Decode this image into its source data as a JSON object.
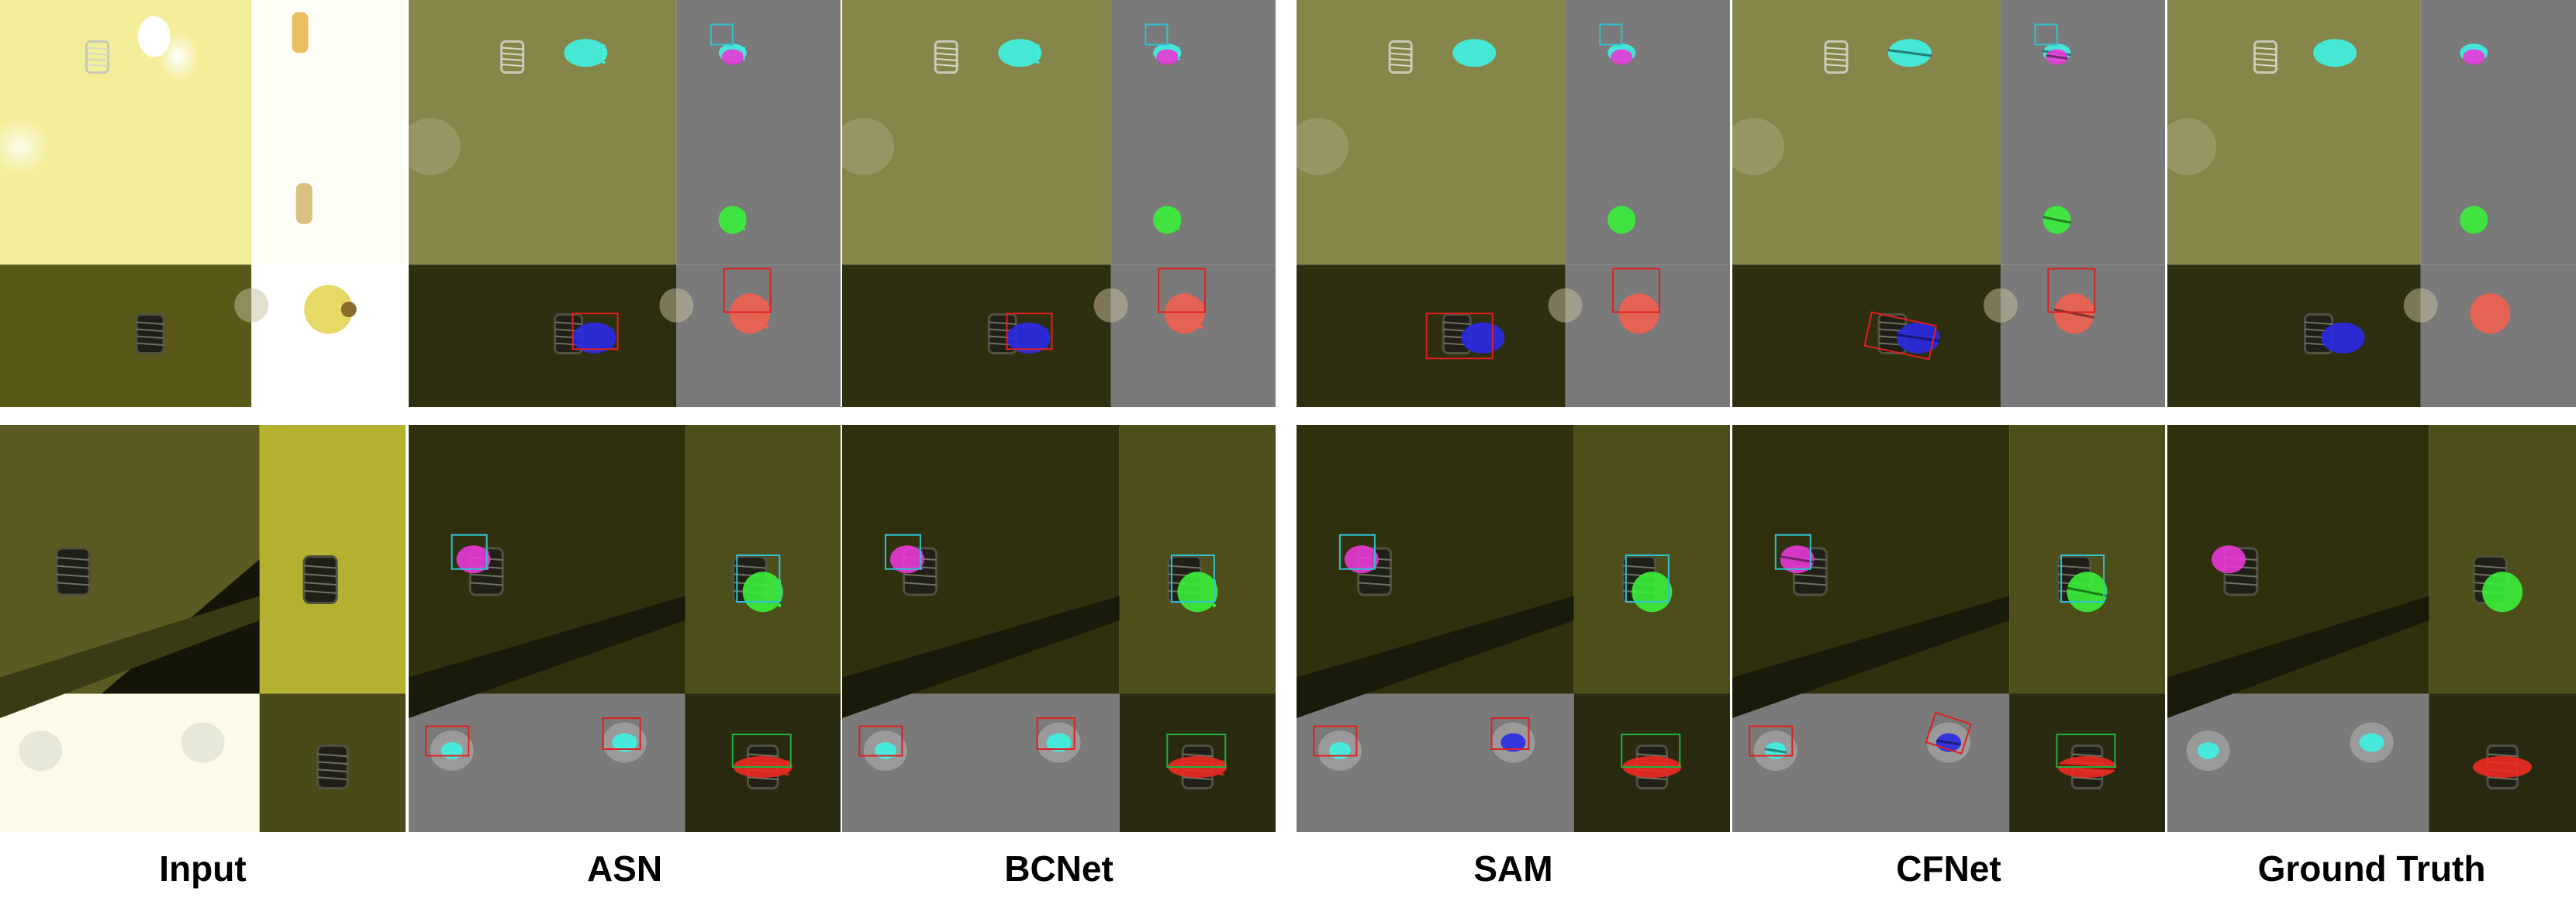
{
  "figure": {
    "columns": [
      {
        "id": "input",
        "label": "Input",
        "kind": "input"
      },
      {
        "id": "asn",
        "label": "ASN",
        "kind": "pred",
        "masks": "blocky"
      },
      {
        "id": "bcnet",
        "label": "BCNet",
        "kind": "pred",
        "masks": "blocky"
      },
      {
        "id": "sam",
        "label": "SAM",
        "kind": "pred",
        "masks": "smooth"
      },
      {
        "id": "cfnet",
        "label": "CFNet",
        "kind": "pred",
        "masks": "split"
      },
      {
        "id": "gt",
        "label": "Ground Truth",
        "kind": "gt",
        "masks": "smooth"
      }
    ],
    "rows": [
      {
        "id": "example-1",
        "instances": [
          "cyan",
          "magenta",
          "green",
          "orange-red",
          "blue"
        ]
      },
      {
        "id": "example-2",
        "instances": [
          "magenta",
          "green",
          "cyan",
          "blue",
          "red"
        ]
      }
    ],
    "colors": {
      "cyan": "#3ff2e4",
      "magenta": "#e838d6",
      "green": "#3af03a",
      "orange-red": "#f06050",
      "blue": "#2a2ae6",
      "red": "#ee2a22",
      "box_red": "#e02020",
      "box_green": "#20b040",
      "box_cyan": "#30c0d0",
      "overlay_gray": "#7a7a7a",
      "overlay_olive": "#5a5a28",
      "dark_olive": "#2a2a12"
    }
  }
}
